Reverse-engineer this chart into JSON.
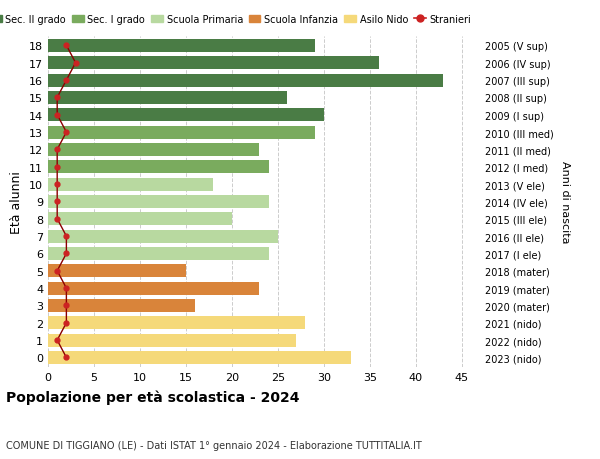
{
  "ages": [
    18,
    17,
    16,
    15,
    14,
    13,
    12,
    11,
    10,
    9,
    8,
    7,
    6,
    5,
    4,
    3,
    2,
    1,
    0
  ],
  "bar_values": [
    29,
    36,
    43,
    26,
    30,
    29,
    23,
    24,
    18,
    24,
    20,
    25,
    24,
    15,
    23,
    16,
    28,
    27,
    33
  ],
  "stranieri_values": [
    2,
    3,
    2,
    1,
    1,
    2,
    1,
    1,
    1,
    1,
    1,
    2,
    2,
    1,
    2,
    2,
    2,
    1,
    2
  ],
  "right_labels_by_age": {
    "18": "2005 (V sup)",
    "17": "2006 (IV sup)",
    "16": "2007 (III sup)",
    "15": "2008 (II sup)",
    "14": "2009 (I sup)",
    "13": "2010 (III med)",
    "12": "2011 (II med)",
    "11": "2012 (I med)",
    "10": "2013 (V ele)",
    "9": "2014 (IV ele)",
    "8": "2015 (III ele)",
    "7": "2016 (II ele)",
    "6": "2017 (I ele)",
    "5": "2018 (mater)",
    "4": "2019 (mater)",
    "3": "2020 (mater)",
    "2": "2021 (nido)",
    "1": "2022 (nido)",
    "0": "2023 (nido)"
  },
  "bar_colors": [
    "#4a7c45",
    "#4a7c45",
    "#4a7c45",
    "#4a7c45",
    "#4a7c45",
    "#7aab5e",
    "#7aab5e",
    "#7aab5e",
    "#b8d9a0",
    "#b8d9a0",
    "#b8d9a0",
    "#b8d9a0",
    "#b8d9a0",
    "#d9843a",
    "#d9843a",
    "#d9843a",
    "#f5d97a",
    "#f5d97a",
    "#f5d97a"
  ],
  "legend_labels": [
    "Sec. II grado",
    "Sec. I grado",
    "Scuola Primaria",
    "Scuola Infanzia",
    "Asilo Nido",
    "Stranieri"
  ],
  "legend_colors": [
    "#4a7c45",
    "#7aab5e",
    "#b8d9a0",
    "#d9843a",
    "#f5d97a",
    "#cc2222"
  ],
  "ylabel": "Età alunni",
  "ylabel_right": "Anni di nascita",
  "title": "Popolazione per età scolastica - 2024",
  "subtitle": "COMUNE DI TIGGIANO (LE) - Dati ISTAT 1° gennaio 2024 - Elaborazione TUTTITALIA.IT",
  "xlim": [
    0,
    47
  ],
  "xticks": [
    0,
    5,
    10,
    15,
    20,
    25,
    30,
    35,
    40,
    45
  ],
  "background_color": "#ffffff",
  "grid_color": "#cccccc"
}
